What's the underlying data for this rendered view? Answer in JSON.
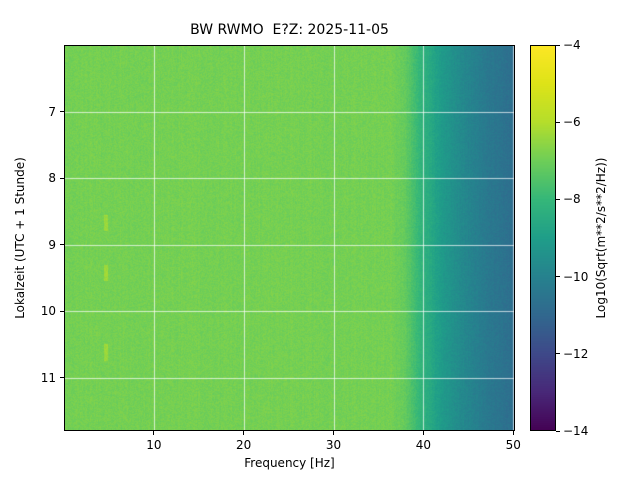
{
  "figure": {
    "background": "#ffffff"
  },
  "chart_data": {
    "type": "heatmap",
    "title": "BW RWMO  E?Z: 2025-11-05",
    "xlabel": "Frequency [Hz]",
    "ylabel": "Lokalzeit (UTC + 1 Stunde)",
    "x_range": [
      0,
      50.2
    ],
    "y_range": [
      6.0,
      11.8
    ],
    "x_ticks": [
      10,
      20,
      30,
      40,
      50
    ],
    "x_tick_labels": [
      "10",
      "20",
      "30",
      "40",
      "50"
    ],
    "y_ticks": [
      7,
      8,
      9,
      10,
      11
    ],
    "y_tick_labels": [
      "7",
      "8",
      "9",
      "10",
      "11"
    ],
    "grid": true,
    "grid_color": "rgba(255,255,255,0.7)",
    "colormap": "viridis",
    "main_field_hex": "#76d054",
    "colorbar": {
      "label": "Log10(Sqrt(m**2/s**2/Hz))",
      "vmin": -14,
      "vmax": -4,
      "ticks": [
        -4,
        -6,
        -8,
        -10,
        -12,
        -14
      ],
      "tick_labels": [
        "−4",
        "−6",
        "−8",
        "−10",
        "−12",
        "−14"
      ]
    },
    "spectral_profile": {
      "description": "Approximately time-invariant level vs frequency; pairs of [frequency_Hz, log10_sqrt_psd]",
      "points": [
        [
          0,
          -6.9
        ],
        [
          36.5,
          -6.9
        ],
        [
          38,
          -7.2
        ],
        [
          39,
          -7.7
        ],
        [
          40,
          -8.2
        ],
        [
          41.5,
          -8.9
        ],
        [
          43,
          -9.4
        ],
        [
          45,
          -9.9
        ],
        [
          47,
          -10.3
        ],
        [
          49,
          -10.6
        ],
        [
          50.2,
          -10.8
        ]
      ]
    },
    "artifacts": [
      {
        "freq": 4.7,
        "time_from": 8.55,
        "time_to": 8.8,
        "boost": 0.55
      },
      {
        "freq": 4.7,
        "time_from": 9.3,
        "time_to": 9.55,
        "boost": 0.55
      },
      {
        "freq": 4.7,
        "time_from": 10.5,
        "time_to": 10.75,
        "boost": 0.55
      }
    ],
    "noise_amplitude": 0.2
  }
}
